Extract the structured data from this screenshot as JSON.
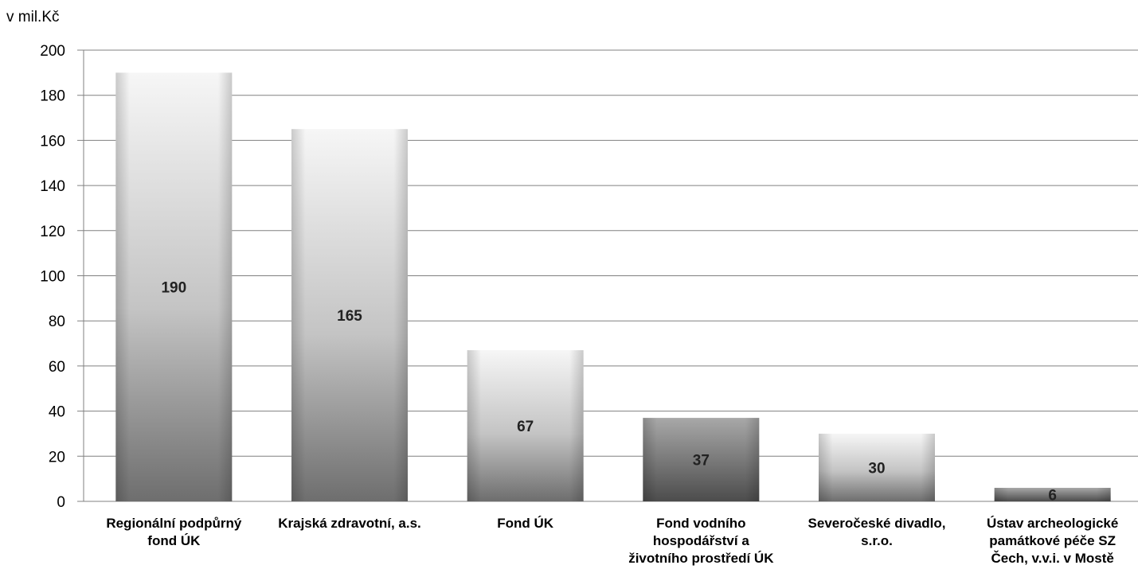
{
  "chart_data": {
    "type": "bar",
    "unit_label": "v mil.Kč",
    "categories": [
      "Regionální podpůrný fond ÚK",
      "Krajská zdravotní, a.s.",
      "Fond ÚK",
      "Fond vodního hospodářství a životního prostředí ÚK",
      "Severočeské divadlo, s.r.o.",
      "Ústav archeologické památkové péče SZ Čech, v.v.i. v Mostě"
    ],
    "values": [
      190,
      165,
      67,
      37,
      30,
      6
    ],
    "data_labels": [
      "190",
      "165",
      "67",
      "37",
      "30",
      "6"
    ],
    "ylim": [
      0,
      200
    ],
    "yticks": [
      0,
      20,
      40,
      60,
      80,
      100,
      120,
      140,
      160,
      180,
      200
    ],
    "grid": true,
    "legend": "none",
    "colors": {
      "gridline": "#808080",
      "bar_top": "#f4f4f4",
      "bar_mid": "#bdbdbd",
      "bar_bottom": "#6a6a6a",
      "bar_dark_top": "#9a9a9a",
      "bar_dark_bottom": "#4a4a4a"
    }
  }
}
